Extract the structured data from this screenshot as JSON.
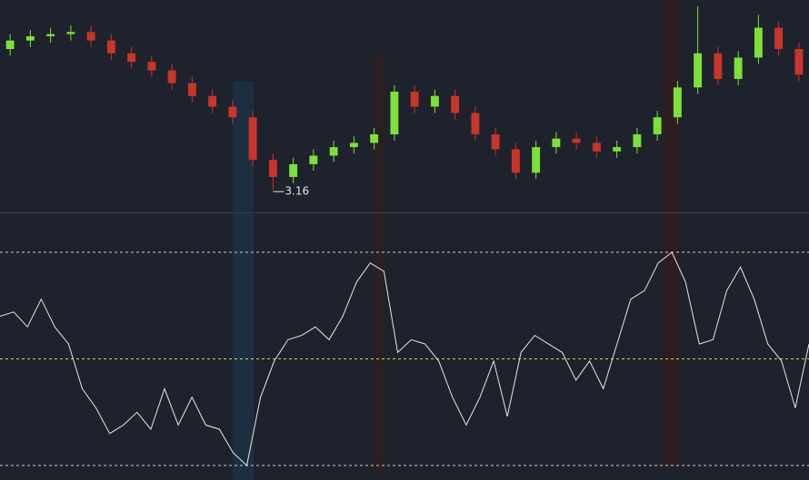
{
  "chart_data": [
    {
      "type": "candlestick",
      "annotation": "3.16",
      "up_color": "#7ee03a",
      "down_color": "#c8352b",
      "ylim": [
        3.05,
        4.05
      ],
      "open": [
        3.82,
        3.86,
        3.88,
        3.89,
        3.9,
        3.86,
        3.8,
        3.76,
        3.72,
        3.66,
        3.6,
        3.55,
        3.5,
        3.3,
        3.22,
        3.28,
        3.32,
        3.36,
        3.38,
        3.42,
        3.62,
        3.55,
        3.6,
        3.52,
        3.42,
        3.35,
        3.24,
        3.36,
        3.4,
        3.38,
        3.34,
        3.36,
        3.42,
        3.5,
        3.64,
        3.8,
        3.68,
        3.78,
        3.92,
        3.82
      ],
      "high": [
        3.89,
        3.91,
        3.92,
        3.93,
        3.93,
        3.89,
        3.83,
        3.79,
        3.75,
        3.69,
        3.63,
        3.58,
        3.53,
        3.33,
        3.31,
        3.35,
        3.39,
        3.41,
        3.45,
        3.65,
        3.65,
        3.63,
        3.63,
        3.55,
        3.45,
        3.38,
        3.39,
        3.43,
        3.43,
        3.41,
        3.39,
        3.45,
        3.53,
        3.67,
        4.02,
        3.83,
        3.81,
        3.98,
        3.95,
        3.85
      ],
      "low": [
        3.79,
        3.83,
        3.85,
        3.86,
        3.83,
        3.77,
        3.73,
        3.69,
        3.63,
        3.57,
        3.52,
        3.47,
        3.27,
        3.16,
        3.19,
        3.25,
        3.29,
        3.33,
        3.35,
        3.39,
        3.52,
        3.52,
        3.49,
        3.39,
        3.32,
        3.21,
        3.21,
        3.33,
        3.35,
        3.31,
        3.31,
        3.33,
        3.39,
        3.47,
        3.61,
        3.65,
        3.65,
        3.75,
        3.79,
        3.67
      ],
      "close": [
        3.86,
        3.88,
        3.89,
        3.9,
        3.86,
        3.8,
        3.76,
        3.72,
        3.66,
        3.6,
        3.55,
        3.5,
        3.3,
        3.22,
        3.28,
        3.32,
        3.36,
        3.38,
        3.42,
        3.62,
        3.55,
        3.6,
        3.52,
        3.42,
        3.35,
        3.24,
        3.36,
        3.4,
        3.38,
        3.34,
        3.36,
        3.42,
        3.5,
        3.64,
        3.8,
        3.68,
        3.78,
        3.92,
        3.82,
        3.7
      ]
    },
    {
      "type": "line",
      "color": "#e6e6e6",
      "ylim": [
        0,
        100
      ],
      "yticks": [
        0,
        50,
        100
      ],
      "grid": true,
      "values": [
        70,
        72,
        65,
        78,
        65,
        57,
        36,
        27,
        15,
        19,
        25,
        17,
        36,
        19,
        32,
        19,
        17,
        6,
        0,
        32,
        49,
        59,
        61,
        65,
        59,
        70,
        86,
        95,
        91,
        53,
        59,
        57,
        49,
        32,
        19,
        32,
        49,
        23,
        53,
        61,
        57,
        53,
        40,
        49,
        36,
        57,
        78,
        82,
        95,
        100,
        86,
        57,
        59,
        82,
        93,
        78,
        57,
        49,
        27,
        57
      ]
    }
  ]
}
